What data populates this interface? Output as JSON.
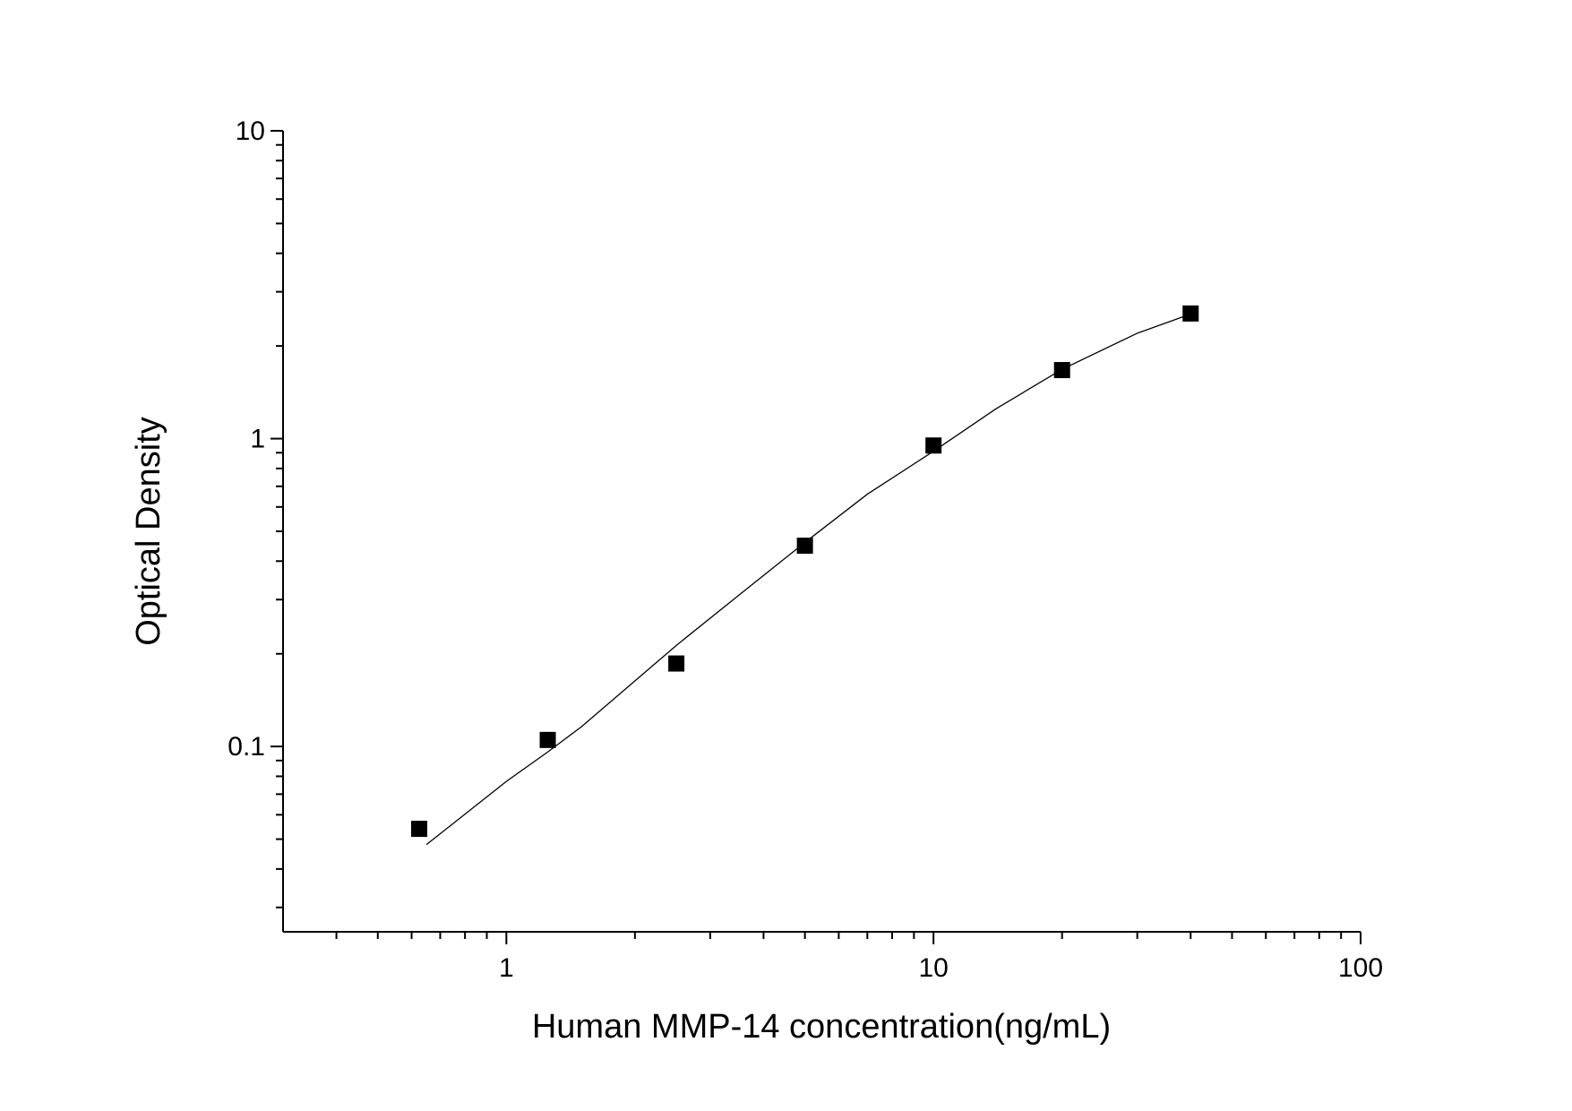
{
  "chart_data": {
    "type": "scatter",
    "x_label": "Human MMP-14 concentration(ng/mL)",
    "y_label": "Optical Density",
    "x_log": true,
    "y_log": true,
    "xlim": [
      0.3,
      100
    ],
    "xticks": [
      1,
      10,
      100
    ],
    "xminorticks": [
      0.4,
      0.5,
      0.6,
      0.7,
      0.8,
      0.9,
      2,
      3,
      4,
      5,
      6,
      7,
      8,
      9,
      20,
      30,
      40,
      50,
      60,
      70,
      80,
      90
    ],
    "ylim": [
      0.025,
      10
    ],
    "yticks": [
      0.1,
      1,
      10
    ],
    "yminorticks": [
      0.03,
      0.04,
      0.05,
      0.06,
      0.07,
      0.08,
      0.09,
      0.2,
      0.3,
      0.4,
      0.5,
      0.6,
      0.7,
      0.8,
      0.9,
      2,
      3,
      4,
      5,
      6,
      7,
      8,
      9
    ],
    "series": [
      {
        "kind": "points",
        "color": "#000000",
        "x": [
          0.625,
          1.25,
          2.5,
          5,
          10,
          20,
          40
        ],
        "values": [
          0.054,
          0.105,
          0.186,
          0.449,
          0.95,
          1.67,
          2.55
        ]
      },
      {
        "kind": "curve",
        "color": "#000000",
        "x": [
          0.65,
          1,
          1.25,
          1.5,
          2.5,
          3.5,
          5,
          7,
          10,
          14,
          20,
          30,
          40
        ],
        "values": [
          0.048,
          0.077,
          0.096,
          0.116,
          0.213,
          0.31,
          0.46,
          0.66,
          0.91,
          1.25,
          1.68,
          2.2,
          2.54
        ]
      }
    ]
  }
}
